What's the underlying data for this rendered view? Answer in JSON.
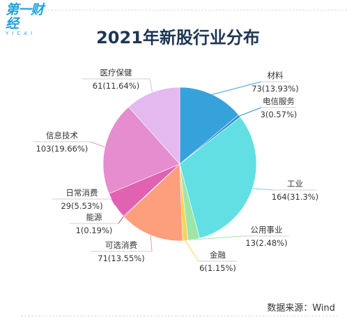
{
  "brand": {
    "logo_cn": "第一财经",
    "logo_en": "YICAI"
  },
  "title": "2021年新股行业分布",
  "source": "数据来源：Wind",
  "chart_data": {
    "type": "pie",
    "title": "2021年新股行业分布",
    "slices": [
      {
        "name": "材料",
        "value": 73,
        "percent": "13.93%",
        "color": "#35a2dc"
      },
      {
        "name": "电信服务",
        "value": 3,
        "percent": "0.57%",
        "color": "#2f8fd0"
      },
      {
        "name": "工业",
        "value": 164,
        "percent": "31.3%",
        "color": "#62dfe3"
      },
      {
        "name": "公用事业",
        "value": 13,
        "percent": "2.48%",
        "color": "#9ee6a8"
      },
      {
        "name": "金融",
        "value": 6,
        "percent": "1.15%",
        "color": "#fbd35a"
      },
      {
        "name": "可选消费",
        "value": 71,
        "percent": "13.55%",
        "color": "#fd9e7d"
      },
      {
        "name": "能源",
        "value": 1,
        "percent": "0.19%",
        "color": "#b04a8a"
      },
      {
        "name": "日常消费",
        "value": 29,
        "percent": "5.53%",
        "color": "#e062b0"
      },
      {
        "name": "信息技术",
        "value": 103,
        "percent": "19.66%",
        "color": "#e58dcf"
      },
      {
        "name": "医疗保健",
        "value": 61,
        "percent": "11.64%",
        "color": "#e4b9ef"
      }
    ]
  }
}
